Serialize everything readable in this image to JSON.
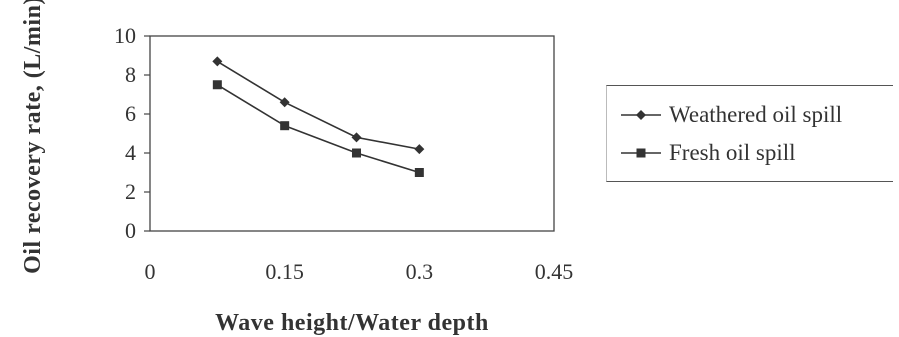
{
  "chart_data": {
    "type": "line",
    "xlabel": "Wave height/Water depth",
    "ylabel": "Oil recovery rate, (L/min)",
    "xlim": [
      0,
      0.45
    ],
    "ylim": [
      0,
      10
    ],
    "x_ticks": [
      "0",
      "0.15",
      "0.3",
      "0.45"
    ],
    "y_ticks": [
      "0",
      "2",
      "4",
      "6",
      "8",
      "10"
    ],
    "legend_position": "right",
    "grid": false,
    "series": [
      {
        "name": "Weathered oil spill",
        "marker": "diamond",
        "color": "#333333",
        "x": [
          0.075,
          0.15,
          0.23,
          0.3
        ],
        "y": [
          8.7,
          6.6,
          4.8,
          4.2
        ]
      },
      {
        "name": "Fresh oil spill",
        "marker": "square",
        "color": "#333333",
        "x": [
          0.075,
          0.15,
          0.23,
          0.3
        ],
        "y": [
          7.5,
          5.4,
          4.0,
          3.0
        ]
      }
    ]
  }
}
